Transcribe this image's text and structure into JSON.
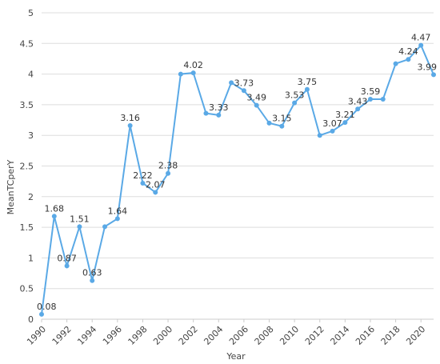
{
  "chart_data": {
    "type": "line",
    "title": "",
    "xlabel": "Year",
    "ylabel": "MeanTCperY",
    "ylim": [
      0,
      5
    ],
    "yticks": [
      "0",
      "0.5",
      "1",
      "1.5",
      "2",
      "2.5",
      "3",
      "3.5",
      "4",
      "4.5",
      "5"
    ],
    "xticks": [
      "1990",
      "1992",
      "1994",
      "1996",
      "1998",
      "2000",
      "2002",
      "2004",
      "2006",
      "2008",
      "2010",
      "2012",
      "2014",
      "2016",
      "2018",
      "2020"
    ],
    "grid": true,
    "color": "#5aa9e6",
    "x": [
      1990,
      1991,
      1992,
      1993,
      1994,
      1995,
      1996,
      1997,
      1998,
      1999,
      2000,
      2001,
      2002,
      2003,
      2004,
      2005,
      2006,
      2007,
      2008,
      2009,
      2010,
      2011,
      2012,
      2013,
      2014,
      2015,
      2016,
      2017,
      2018,
      2019,
      2020,
      2021
    ],
    "values": [
      0.08,
      1.68,
      0.87,
      1.51,
      0.63,
      1.51,
      1.64,
      3.16,
      2.22,
      2.07,
      2.38,
      4.0,
      4.02,
      3.36,
      3.33,
      3.86,
      3.73,
      3.49,
      3.2,
      3.15,
      3.53,
      3.75,
      3.0,
      3.07,
      3.21,
      3.43,
      3.59,
      3.59,
      4.17,
      4.24,
      4.47,
      3.99
    ],
    "labels": [
      "0.08",
      "1.68",
      "0.87",
      "1.51",
      "0.63",
      "",
      "1.64",
      "3.16",
      "2.22",
      "2.07",
      "2.38",
      "",
      "4.02",
      "",
      "3.33",
      "",
      "3.73",
      "3.49",
      "",
      "3.15",
      "3.53",
      "3.75",
      "",
      "3.07",
      "3.21",
      "3.43",
      "3.59",
      "",
      "",
      "4.24",
      "4.47",
      "3.99"
    ]
  }
}
